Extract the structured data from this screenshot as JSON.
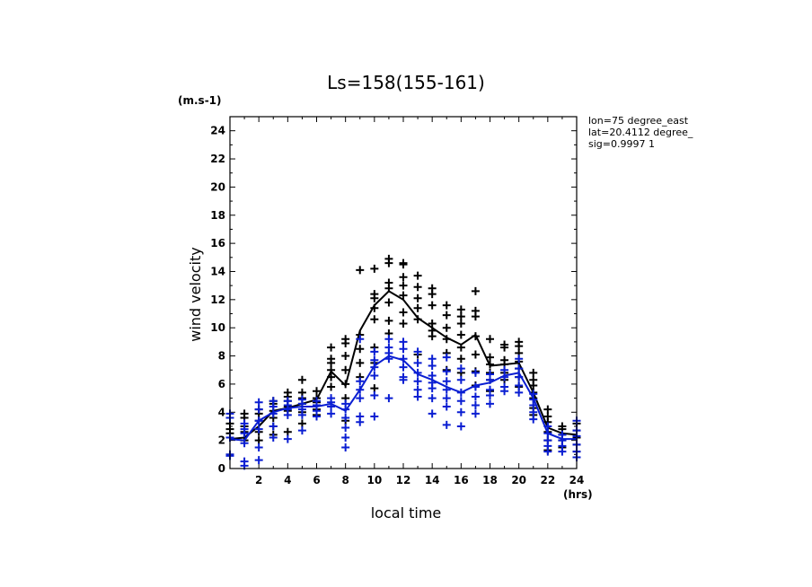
{
  "chart_data": {
    "type": "scatter",
    "title": "Ls=158(155-161)",
    "xlabel": "local time",
    "ylabel": "wind velocity",
    "y_unit": "(m.s-1)",
    "x_unit": "(hrs)",
    "xlim": [
      0,
      24
    ],
    "ylim": [
      0,
      25
    ],
    "x_ticks": [
      2,
      4,
      6,
      8,
      10,
      12,
      14,
      16,
      18,
      20,
      22,
      24
    ],
    "y_ticks": [
      0,
      2,
      4,
      6,
      8,
      10,
      12,
      14,
      16,
      18,
      20,
      22,
      24
    ],
    "grid": false,
    "annotations": [
      "lon=75 degree_east",
      "lat=20.4112 degree_",
      "sig=0.9997 1"
    ],
    "series": [
      {
        "color": "#000000",
        "mean_x": [
          0,
          1,
          2,
          3,
          4,
          5,
          6,
          7,
          8,
          9,
          10,
          11,
          12,
          13,
          14,
          15,
          16,
          17,
          18,
          19,
          20,
          21,
          22,
          23,
          24
        ],
        "mean_y": [
          2.1,
          2.2,
          3.0,
          4.1,
          4.3,
          4.6,
          4.9,
          6.9,
          5.9,
          9.8,
          11.6,
          12.6,
          12.0,
          10.7,
          10.0,
          9.3,
          8.8,
          9.5,
          7.3,
          7.4,
          7.5,
          5.4,
          2.9,
          2.5,
          2.4
        ],
        "points": [
          [
            0,
            2.5
          ],
          [
            0,
            2.8
          ],
          [
            0,
            3.2
          ],
          [
            0,
            1.0
          ],
          [
            1,
            2.6
          ],
          [
            1,
            3.0
          ],
          [
            1,
            3.6
          ],
          [
            1,
            3.9
          ],
          [
            1,
            2.0
          ],
          [
            2,
            2.6
          ],
          [
            2,
            3.4
          ],
          [
            2,
            3.9
          ],
          [
            2,
            4.2
          ],
          [
            2,
            2.0
          ],
          [
            3,
            3.0
          ],
          [
            3,
            3.6
          ],
          [
            3,
            4.1
          ],
          [
            3,
            4.6
          ],
          [
            3,
            4.8
          ],
          [
            3,
            2.4
          ],
          [
            4,
            4.1
          ],
          [
            4,
            4.4
          ],
          [
            4,
            4.8
          ],
          [
            4,
            5.1
          ],
          [
            4,
            5.4
          ],
          [
            4,
            2.6
          ],
          [
            5,
            4.0
          ],
          [
            5,
            4.6
          ],
          [
            5,
            5.0
          ],
          [
            5,
            5.4
          ],
          [
            5,
            6.3
          ],
          [
            5,
            3.2
          ],
          [
            6,
            4.2
          ],
          [
            6,
            4.7
          ],
          [
            6,
            5.0
          ],
          [
            6,
            5.5
          ],
          [
            6,
            3.8
          ],
          [
            7,
            5.8
          ],
          [
            7,
            6.5
          ],
          [
            7,
            7.0
          ],
          [
            7,
            7.5
          ],
          [
            7,
            7.8
          ],
          [
            7,
            8.6
          ],
          [
            8,
            3.4
          ],
          [
            8,
            5.0
          ],
          [
            8,
            6.0
          ],
          [
            8,
            7.0
          ],
          [
            8,
            8.0
          ],
          [
            8,
            8.9
          ],
          [
            8,
            9.2
          ],
          [
            9,
            6.5
          ],
          [
            9,
            7.5
          ],
          [
            9,
            8.5
          ],
          [
            9,
            9.5
          ],
          [
            9,
            14.1
          ],
          [
            10,
            5.7
          ],
          [
            10,
            7.5
          ],
          [
            10,
            8.6
          ],
          [
            10,
            10.6
          ],
          [
            10,
            11.4
          ],
          [
            10,
            12.1
          ],
          [
            10,
            12.4
          ],
          [
            10,
            14.2
          ],
          [
            11,
            9.6
          ],
          [
            11,
            10.5
          ],
          [
            11,
            11.8
          ],
          [
            11,
            12.8
          ],
          [
            11,
            13.2
          ],
          [
            11,
            14.6
          ],
          [
            11,
            14.9
          ],
          [
            12,
            10.3
          ],
          [
            12,
            11.1
          ],
          [
            12,
            12.3
          ],
          [
            12,
            13.0
          ],
          [
            12,
            13.6
          ],
          [
            12,
            14.5
          ],
          [
            12,
            14.6
          ],
          [
            13,
            8.1
          ],
          [
            13,
            10.6
          ],
          [
            13,
            11.4
          ],
          [
            13,
            12.1
          ],
          [
            13,
            12.9
          ],
          [
            13,
            13.7
          ],
          [
            14,
            9.4
          ],
          [
            14,
            9.8
          ],
          [
            14,
            10.3
          ],
          [
            14,
            11.6
          ],
          [
            14,
            12.4
          ],
          [
            14,
            12.8
          ],
          [
            15,
            7.0
          ],
          [
            15,
            8.2
          ],
          [
            15,
            9.2
          ],
          [
            15,
            10.0
          ],
          [
            15,
            10.9
          ],
          [
            15,
            11.6
          ],
          [
            16,
            6.8
          ],
          [
            16,
            7.8
          ],
          [
            16,
            8.6
          ],
          [
            16,
            9.5
          ],
          [
            16,
            10.3
          ],
          [
            16,
            10.8
          ],
          [
            16,
            11.3
          ],
          [
            17,
            5.9
          ],
          [
            17,
            6.9
          ],
          [
            17,
            8.1
          ],
          [
            17,
            9.4
          ],
          [
            17,
            10.8
          ],
          [
            17,
            11.2
          ],
          [
            17,
            12.6
          ],
          [
            18,
            5.5
          ],
          [
            18,
            6.3
          ],
          [
            18,
            6.8
          ],
          [
            18,
            7.4
          ],
          [
            18,
            7.9
          ],
          [
            18,
            9.2
          ],
          [
            19,
            6.3
          ],
          [
            19,
            6.8
          ],
          [
            19,
            7.4
          ],
          [
            19,
            7.7
          ],
          [
            19,
            8.6
          ],
          [
            19,
            8.8
          ],
          [
            20,
            5.8
          ],
          [
            20,
            6.5
          ],
          [
            20,
            7.1
          ],
          [
            20,
            7.6
          ],
          [
            20,
            8.2
          ],
          [
            20,
            8.7
          ],
          [
            20,
            9.0
          ],
          [
            21,
            3.8
          ],
          [
            21,
            4.3
          ],
          [
            21,
            5.0
          ],
          [
            21,
            5.4
          ],
          [
            21,
            5.9
          ],
          [
            21,
            6.3
          ],
          [
            21,
            6.8
          ],
          [
            22,
            1.3
          ],
          [
            22,
            2.0
          ],
          [
            22,
            2.6
          ],
          [
            22,
            3.3
          ],
          [
            22,
            3.7
          ],
          [
            22,
            4.2
          ],
          [
            23,
            1.5
          ],
          [
            23,
            2.0
          ],
          [
            23,
            2.4
          ],
          [
            23,
            2.8
          ],
          [
            23,
            3.0
          ],
          [
            24,
            1.2
          ],
          [
            24,
            1.7
          ],
          [
            24,
            2.2
          ],
          [
            24,
            2.7
          ],
          [
            24,
            3.2
          ]
        ]
      },
      {
        "color": "#0a1ed2",
        "mean_x": [
          0,
          1,
          2,
          3,
          4,
          5,
          6,
          7,
          8,
          9,
          10,
          11,
          12,
          13,
          14,
          15,
          16,
          17,
          18,
          19,
          20,
          21,
          22,
          23,
          24
        ],
        "mean_y": [
          2.1,
          2.0,
          3.4,
          4.0,
          4.3,
          4.4,
          4.4,
          4.6,
          4.1,
          5.6,
          7.3,
          8.0,
          7.7,
          6.7,
          6.3,
          5.8,
          5.4,
          5.9,
          6.1,
          6.6,
          6.8,
          5.0,
          2.5,
          2.1,
          2.1
        ],
        "points": [
          [
            0,
            0.9
          ],
          [
            0,
            1.0
          ],
          [
            0,
            2.2
          ],
          [
            0,
            3.6
          ],
          [
            0,
            3.9
          ],
          [
            1,
            0.2
          ],
          [
            1,
            0.5
          ],
          [
            1,
            1.8
          ],
          [
            1,
            2.5
          ],
          [
            1,
            2.8
          ],
          [
            1,
            3.2
          ],
          [
            2,
            0.6
          ],
          [
            2,
            1.5
          ],
          [
            2,
            2.8
          ],
          [
            2,
            3.4
          ],
          [
            2,
            4.2
          ],
          [
            2,
            4.7
          ],
          [
            3,
            2.2
          ],
          [
            3,
            3.0
          ],
          [
            3,
            3.9
          ],
          [
            3,
            4.4
          ],
          [
            3,
            4.8
          ],
          [
            4,
            2.1
          ],
          [
            4,
            3.8
          ],
          [
            4,
            4.2
          ],
          [
            4,
            4.5
          ],
          [
            4,
            4.8
          ],
          [
            5,
            2.7
          ],
          [
            5,
            3.8
          ],
          [
            5,
            4.2
          ],
          [
            5,
            4.6
          ],
          [
            5,
            4.9
          ],
          [
            6,
            3.7
          ],
          [
            6,
            4.1
          ],
          [
            6,
            4.5
          ],
          [
            6,
            4.8
          ],
          [
            7,
            3.9
          ],
          [
            7,
            4.4
          ],
          [
            7,
            4.7
          ],
          [
            7,
            5.0
          ],
          [
            8,
            1.5
          ],
          [
            8,
            2.2
          ],
          [
            8,
            2.9
          ],
          [
            8,
            3.6
          ],
          [
            8,
            4.2
          ],
          [
            8,
            4.6
          ],
          [
            9,
            3.3
          ],
          [
            9,
            3.7
          ],
          [
            9,
            5.0
          ],
          [
            9,
            5.6
          ],
          [
            9,
            6.2
          ],
          [
            9,
            9.2
          ],
          [
            10,
            3.7
          ],
          [
            10,
            5.2
          ],
          [
            10,
            6.6
          ],
          [
            10,
            7.2
          ],
          [
            10,
            7.7
          ],
          [
            10,
            8.3
          ],
          [
            11,
            5.0
          ],
          [
            11,
            7.8
          ],
          [
            11,
            8.2
          ],
          [
            11,
            8.6
          ],
          [
            11,
            9.2
          ],
          [
            12,
            6.3
          ],
          [
            12,
            6.5
          ],
          [
            12,
            7.2
          ],
          [
            12,
            7.8
          ],
          [
            12,
            8.5
          ],
          [
            12,
            9.0
          ],
          [
            13,
            5.1
          ],
          [
            13,
            5.6
          ],
          [
            13,
            6.2
          ],
          [
            13,
            6.8
          ],
          [
            13,
            7.5
          ],
          [
            13,
            8.3
          ],
          [
            14,
            3.9
          ],
          [
            14,
            5.0
          ],
          [
            14,
            5.7
          ],
          [
            14,
            6.1
          ],
          [
            14,
            6.6
          ],
          [
            14,
            7.3
          ],
          [
            14,
            7.8
          ],
          [
            15,
            3.1
          ],
          [
            15,
            4.4
          ],
          [
            15,
            5.0
          ],
          [
            15,
            5.6
          ],
          [
            15,
            6.2
          ],
          [
            15,
            6.9
          ],
          [
            15,
            7.9
          ],
          [
            16,
            3.0
          ],
          [
            16,
            4.0
          ],
          [
            16,
            4.8
          ],
          [
            16,
            5.4
          ],
          [
            16,
            6.3
          ],
          [
            16,
            7.1
          ],
          [
            17,
            3.9
          ],
          [
            17,
            4.5
          ],
          [
            17,
            5.1
          ],
          [
            17,
            5.8
          ],
          [
            17,
            6.8
          ],
          [
            18,
            4.6
          ],
          [
            18,
            5.2
          ],
          [
            18,
            5.6
          ],
          [
            18,
            6.3
          ],
          [
            18,
            6.7
          ],
          [
            19,
            5.5
          ],
          [
            19,
            5.8
          ],
          [
            19,
            6.5
          ],
          [
            19,
            7.0
          ],
          [
            20,
            5.4
          ],
          [
            20,
            5.9
          ],
          [
            20,
            6.5
          ],
          [
            20,
            7.1
          ],
          [
            20,
            7.8
          ],
          [
            21,
            3.5
          ],
          [
            21,
            4.0
          ],
          [
            21,
            4.5
          ],
          [
            21,
            4.9
          ],
          [
            21,
            5.3
          ],
          [
            22,
            1.2
          ],
          [
            22,
            1.6
          ],
          [
            22,
            2.0
          ],
          [
            22,
            2.5
          ],
          [
            22,
            3.0
          ],
          [
            23,
            1.2
          ],
          [
            23,
            1.6
          ],
          [
            23,
            2.0
          ],
          [
            23,
            2.4
          ],
          [
            24,
            0.8
          ],
          [
            24,
            1.2
          ],
          [
            24,
            1.7
          ],
          [
            24,
            2.3
          ],
          [
            24,
            2.7
          ],
          [
            24,
            3.4
          ]
        ]
      }
    ]
  }
}
